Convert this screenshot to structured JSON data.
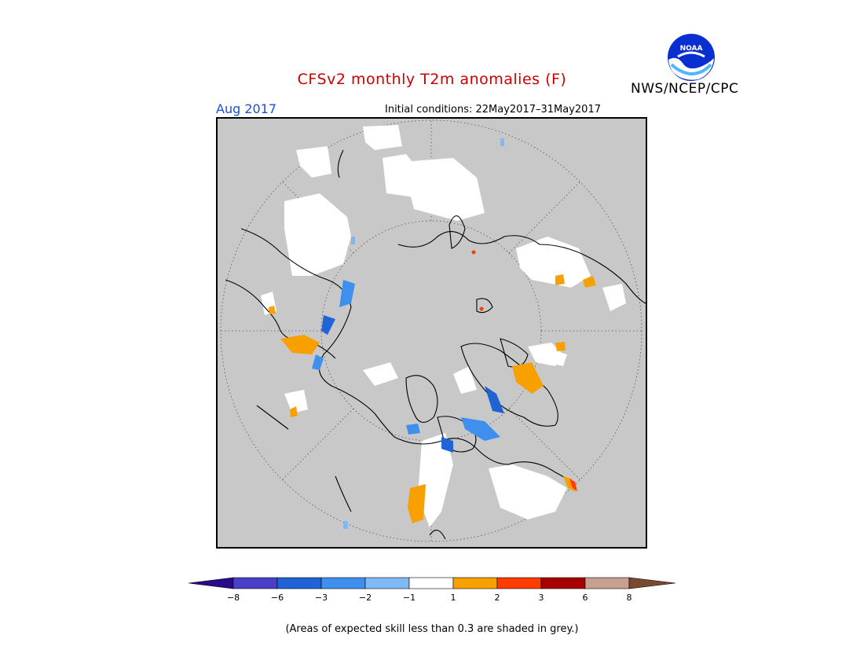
{
  "title": "CFSv2 monthly T2m anomalies (F)",
  "organization": "NWS/NCEP/CPC",
  "logo": {
    "name": "noaa-logo",
    "text": "NOAA"
  },
  "period": "Aug 2017",
  "initial_conditions": "Initial conditions: 22May2017–31May2017",
  "footnote": "(Areas of expected skill less than 0.3 are shaded in grey.)",
  "colors": {
    "title": "#cc0000",
    "period": "#1a4fd6",
    "low_skill_grey": "#c8c8c8",
    "neutral": "#ffffff",
    "bins": [
      "#2a0a8c",
      "#4a3fc9",
      "#1f63d6",
      "#3f8fee",
      "#7fb9f3",
      "#ffffff",
      "#f7a000",
      "#ff3c00",
      "#a80000",
      "#c8a090",
      "#7a4a30"
    ]
  },
  "colorbar": {
    "tick_labels": [
      "−8",
      "−6",
      "−3",
      "−2",
      "−1",
      "1",
      "2",
      "3",
      "6",
      "8"
    ]
  }
}
